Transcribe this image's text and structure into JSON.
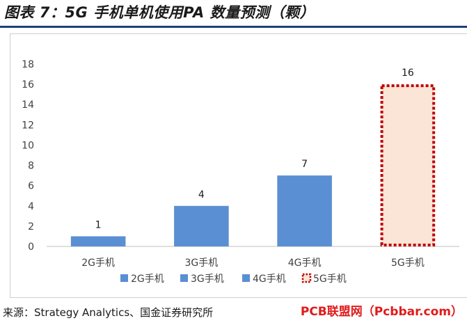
{
  "title": "图表 7：5G 手机单机使用PA 数量预测（颗）",
  "source": "来源：Strategy Analytics、国金证券研究所",
  "watermark": "PCB联盟网（Pcbbar.com）",
  "chart_data": {
    "type": "bar",
    "categories": [
      "2G手机",
      "3G手机",
      "4G手机",
      "5G手机"
    ],
    "values": [
      1,
      4,
      7,
      16
    ],
    "data_labels": [
      "1",
      "4",
      "7",
      "16"
    ],
    "ylim": [
      0,
      18
    ],
    "yticks": [
      0,
      2,
      4,
      6,
      8,
      10,
      12,
      14,
      16,
      18
    ],
    "grid": false,
    "legend_position": "bottom",
    "legend": [
      "2G手机",
      "3G手机",
      "4G手机",
      "5G手机"
    ],
    "colors": {
      "bar": "#5b8fd3",
      "forecast_fill": "#fbe5d6",
      "forecast_border": "#c00000",
      "axis": "#bfbfbf",
      "text": "#404040"
    },
    "styles": [
      "solid",
      "solid",
      "solid",
      "dotted"
    ]
  }
}
